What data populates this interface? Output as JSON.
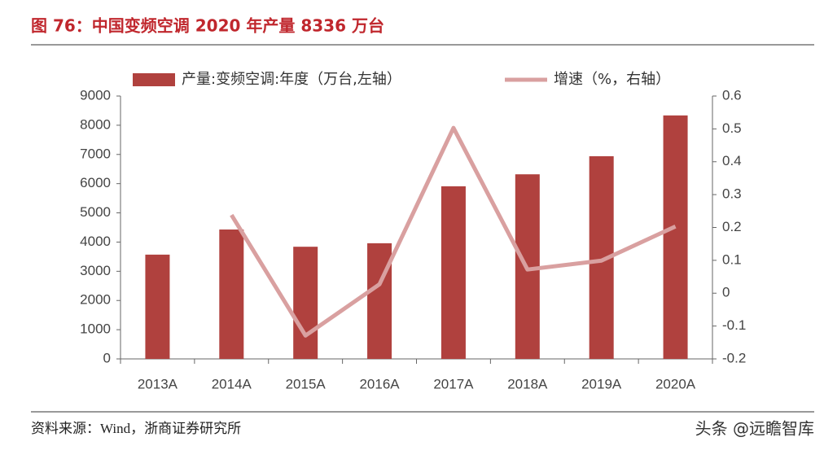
{
  "chart_data": {
    "type": "bar-line",
    "title": "图 76：中国变频空调 2020 年产量 8336 万台",
    "categories": [
      "2013A",
      "2014A",
      "2015A",
      "2016A",
      "2017A",
      "2018A",
      "2019A",
      "2020A"
    ],
    "series": [
      {
        "name": "产量:变频空调:年度（万台,左轴）",
        "color": "#b0413e",
        "type": "bar",
        "values": [
          3570,
          4430,
          3840,
          3960,
          5910,
          6320,
          6940,
          8336
        ]
      },
      {
        "name": "增速（%，右轴）",
        "color": "#d9a0a0",
        "type": "line",
        "axis": "y2",
        "values": [
          null,
          0.238,
          -0.129,
          0.027,
          0.503,
          0.072,
          0.099,
          0.203
        ]
      }
    ],
    "ylim": [
      0,
      9000
    ],
    "yticks": [
      0,
      1000,
      2000,
      3000,
      4000,
      5000,
      6000,
      7000,
      8000,
      9000
    ],
    "y2lim": [
      -0.2,
      0.6
    ],
    "y2ticks": [
      -0.2,
      -0.1,
      0,
      0.1,
      0.2,
      0.3,
      0.4,
      0.5,
      0.6
    ],
    "source": "资料来源：Wind，浙商证券研究所",
    "watermark": "头条 @远瞻智库"
  }
}
